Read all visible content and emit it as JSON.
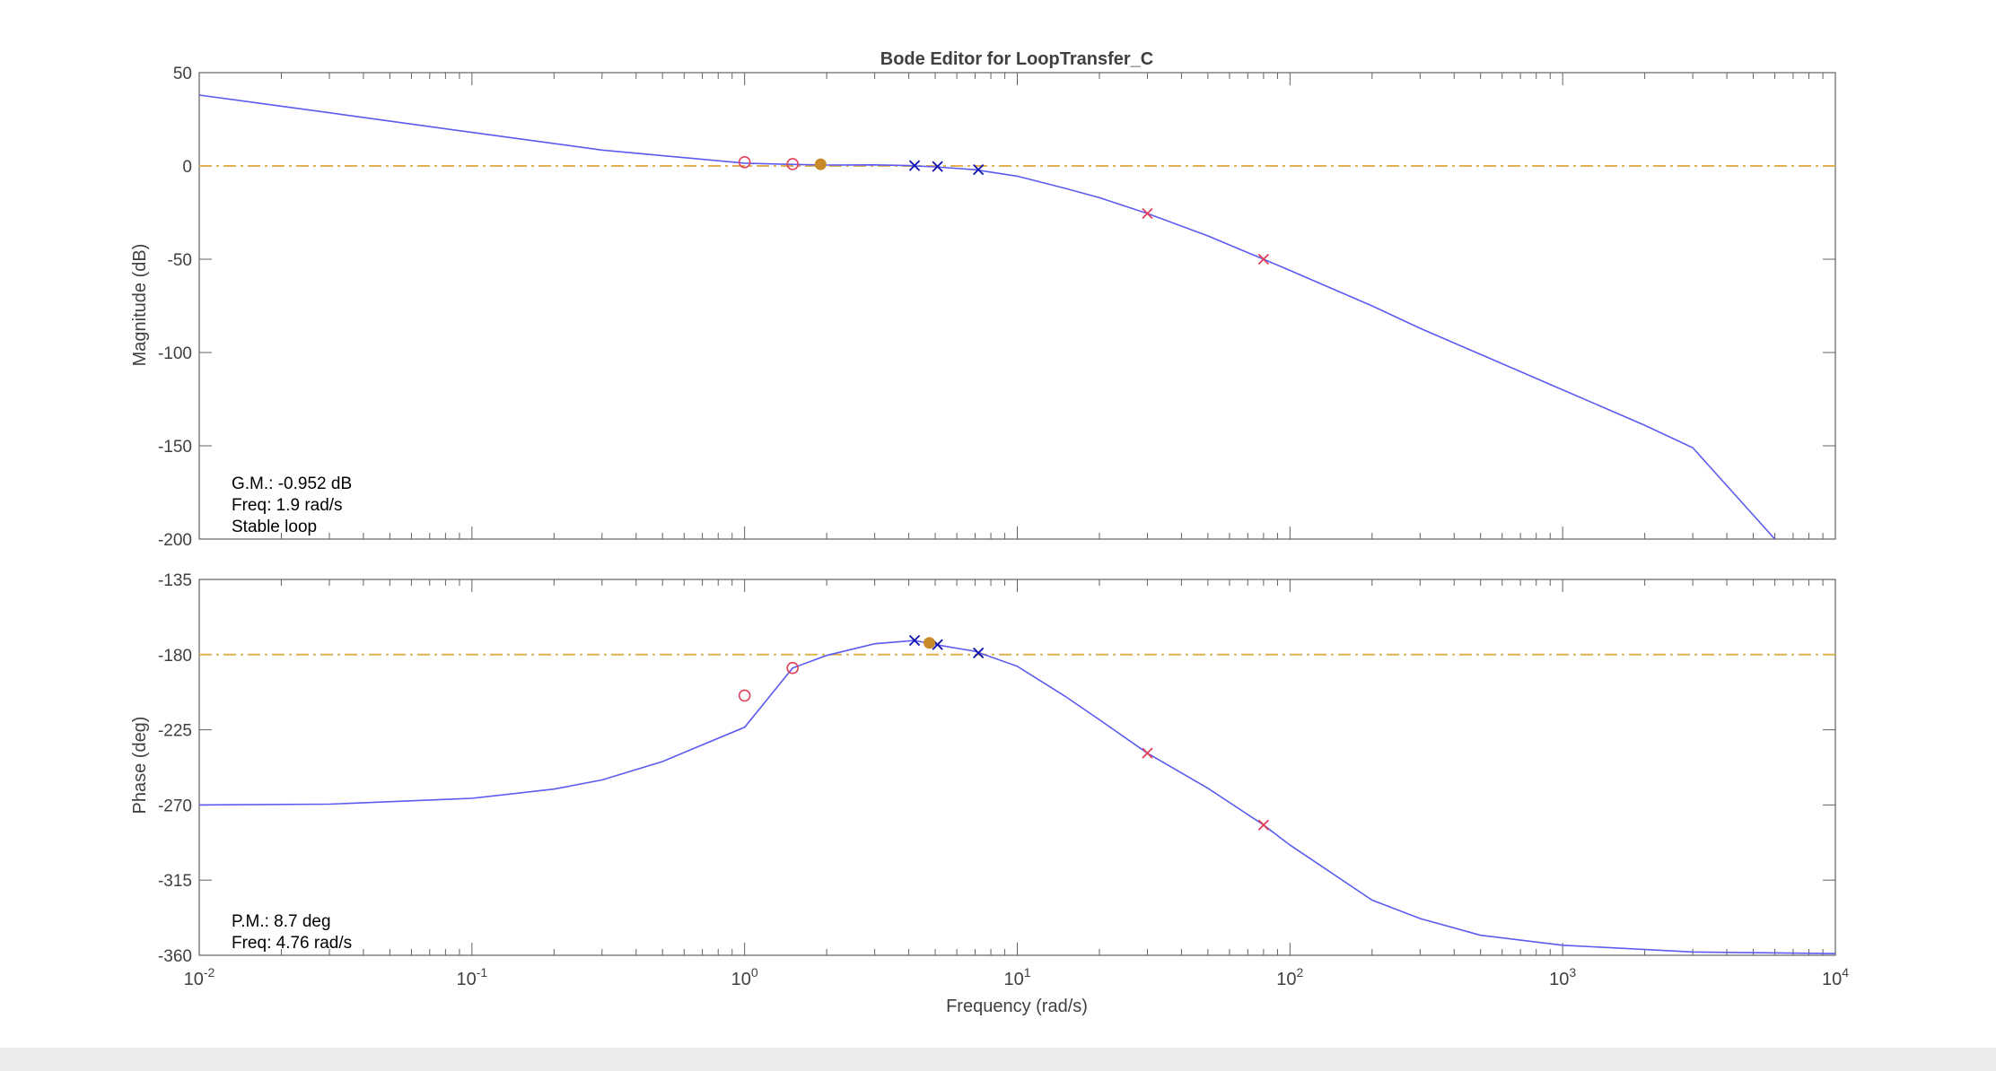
{
  "figure": {
    "background": "#ffffff",
    "outer_background": "#f0f0f0"
  },
  "chart_data": {
    "type": "line",
    "title": "Bode Editor for LoopTransfer_C",
    "xlabel": "Frequency (rad/s)",
    "xscale": "log",
    "xlim": [
      0.01,
      10000
    ],
    "x_ticks": [
      {
        "base": "10",
        "exp": "-2"
      },
      {
        "base": "10",
        "exp": "-1"
      },
      {
        "base": "10",
        "exp": "0"
      },
      {
        "base": "10",
        "exp": "1"
      },
      {
        "base": "10",
        "exp": "2"
      },
      {
        "base": "10",
        "exp": "3"
      },
      {
        "base": "10",
        "exp": "4"
      }
    ],
    "colors": {
      "response": "#5b5bf0",
      "reference": "#e0b052",
      "zero_marker": "#e0405a",
      "pole_marker_blue": "#1010b0",
      "pole_marker_red": "#e0405a",
      "margin_marker": "#c98a2a",
      "axes": "#606060",
      "text": "#404040"
    },
    "magnitude": {
      "ylabel": "Magnitude (dB)",
      "ylim": [
        -200,
        50
      ],
      "yticks": [
        "50",
        "0",
        "-50",
        "-100",
        "-150",
        "-200"
      ],
      "reference_line": 0,
      "response": {
        "name": "LoopTransfer_C",
        "x": [
          0.01,
          0.03,
          0.1,
          0.3,
          1,
          1.5,
          2,
          3,
          4,
          5,
          7,
          10,
          15,
          20,
          30,
          50,
          80,
          100,
          200,
          300,
          500,
          1000,
          2000,
          3000,
          6000
        ],
        "y": [
          38,
          28.5,
          18,
          8.5,
          1.5,
          0.8,
          0.5,
          0.6,
          0.2,
          -0.5,
          -2,
          -5.5,
          -12,
          -17,
          -25.5,
          -37.5,
          -50,
          -56,
          -75,
          -87,
          -101,
          -120,
          -139,
          -151,
          -200
        ]
      },
      "zeros": [
        {
          "x": 1.0,
          "y": 2
        },
        {
          "x": 1.5,
          "y": 1
        }
      ],
      "poles_blue": [
        {
          "x": 4.2,
          "y": 0.2
        },
        {
          "x": 5.1,
          "y": -0.3
        },
        {
          "x": 7.2,
          "y": -2
        }
      ],
      "poles_red": [
        {
          "x": 30,
          "y": -25.5
        },
        {
          "x": 80,
          "y": -50
        }
      ],
      "margin_point": {
        "x": 1.9,
        "y": 0.9
      },
      "annotation": [
        "G.M.: -0.952 dB",
        "Freq: 1.9 rad/s",
        "Stable loop"
      ]
    },
    "phase": {
      "ylabel": "Phase (deg)",
      "ylim": [
        -360,
        -135
      ],
      "yticks": [
        "-135",
        "-180",
        "-225",
        "-270",
        "-315",
        "-360"
      ],
      "reference_line": -180,
      "response": {
        "name": "LoopTransfer_C",
        "x": [
          0.01,
          0.03,
          0.1,
          0.2,
          0.3,
          0.5,
          0.7,
          1,
          1.5,
          2,
          3,
          4.2,
          5,
          7,
          10,
          15,
          20,
          30,
          50,
          80,
          100,
          200,
          300,
          500,
          1000,
          3000,
          10000
        ],
        "y": [
          -270,
          -269.5,
          -266,
          -260.5,
          -255,
          -244,
          -234,
          -223.5,
          -188,
          -180.5,
          -173.5,
          -171.5,
          -174,
          -178,
          -187,
          -205,
          -219,
          -239,
          -260,
          -282,
          -294,
          -327,
          -338,
          -348,
          -354,
          -358,
          -359
        ]
      },
      "zeros": [
        {
          "x": 1.0,
          "y": -204.5
        },
        {
          "x": 1.5,
          "y": -188
        }
      ],
      "poles_blue": [
        {
          "x": 4.2,
          "y": -171.5
        },
        {
          "x": 5.1,
          "y": -174
        },
        {
          "x": 7.2,
          "y": -179
        }
      ],
      "poles_red": [
        {
          "x": 30,
          "y": -239
        },
        {
          "x": 80,
          "y": -282
        }
      ],
      "margin_point": {
        "x": 4.76,
        "y": -173
      },
      "annotation": [
        "P.M.: 8.7 deg",
        "Freq: 4.76 rad/s"
      ]
    }
  }
}
